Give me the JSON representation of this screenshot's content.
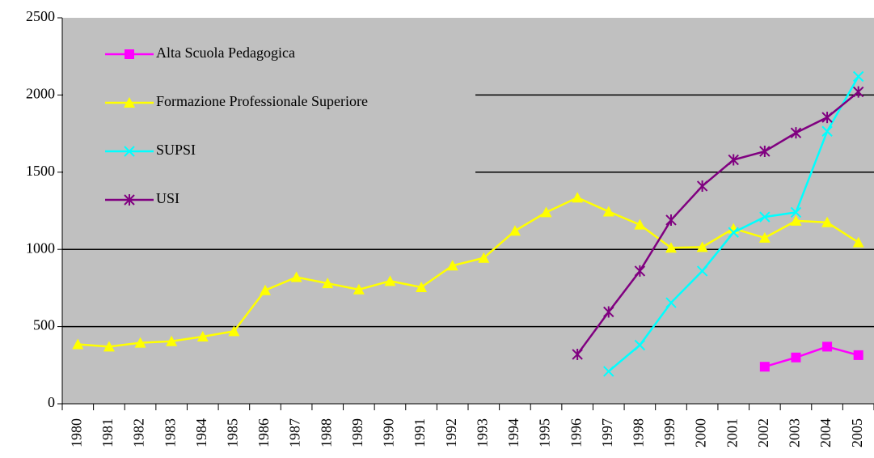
{
  "chart_data": {
    "type": "line",
    "categories": [
      "1980",
      "1981",
      "1982",
      "1983",
      "1984",
      "1985",
      "1986",
      "1987",
      "1988",
      "1989",
      "1990",
      "1991",
      "1992",
      "1993",
      "1994",
      "1995",
      "1996",
      "1997",
      "1998",
      "1999",
      "2000",
      "2001",
      "2002",
      "2003",
      "2004",
      "2005"
    ],
    "series": [
      {
        "name": "Alta Scuola Pedagogica",
        "color": "#ff00ff",
        "marker": "square",
        "values": [
          null,
          null,
          null,
          null,
          null,
          null,
          null,
          null,
          null,
          null,
          null,
          null,
          null,
          null,
          null,
          null,
          null,
          null,
          null,
          null,
          null,
          null,
          240,
          300,
          370,
          315
        ]
      },
      {
        "name": "Formazione Professionale Superiore",
        "color": "#ffff00",
        "marker": "triangle",
        "values": [
          385,
          370,
          395,
          405,
          435,
          470,
          735,
          820,
          780,
          740,
          795,
          755,
          895,
          945,
          1120,
          1240,
          1335,
          1245,
          1160,
          1010,
          1015,
          1135,
          1075,
          1185,
          1175,
          1045
        ]
      },
      {
        "name": "SUPSI",
        "color": "#00ffff",
        "marker": "x",
        "values": [
          null,
          null,
          null,
          null,
          null,
          null,
          null,
          null,
          null,
          null,
          null,
          null,
          null,
          null,
          null,
          null,
          null,
          210,
          380,
          655,
          860,
          1110,
          1210,
          1240,
          1765,
          2120
        ]
      },
      {
        "name": "USI",
        "color": "#800080",
        "marker": "star",
        "values": [
          null,
          null,
          null,
          null,
          null,
          null,
          null,
          null,
          null,
          null,
          null,
          null,
          null,
          null,
          null,
          null,
          320,
          595,
          860,
          1190,
          1410,
          1580,
          1635,
          1755,
          1855,
          2020
        ]
      }
    ],
    "ylim": [
      0,
      2500
    ],
    "yticks": [
      0,
      500,
      1000,
      1500,
      2000,
      2500
    ],
    "grid": true,
    "plot_background": "#c0c0c0",
    "legend": "upper left"
  }
}
